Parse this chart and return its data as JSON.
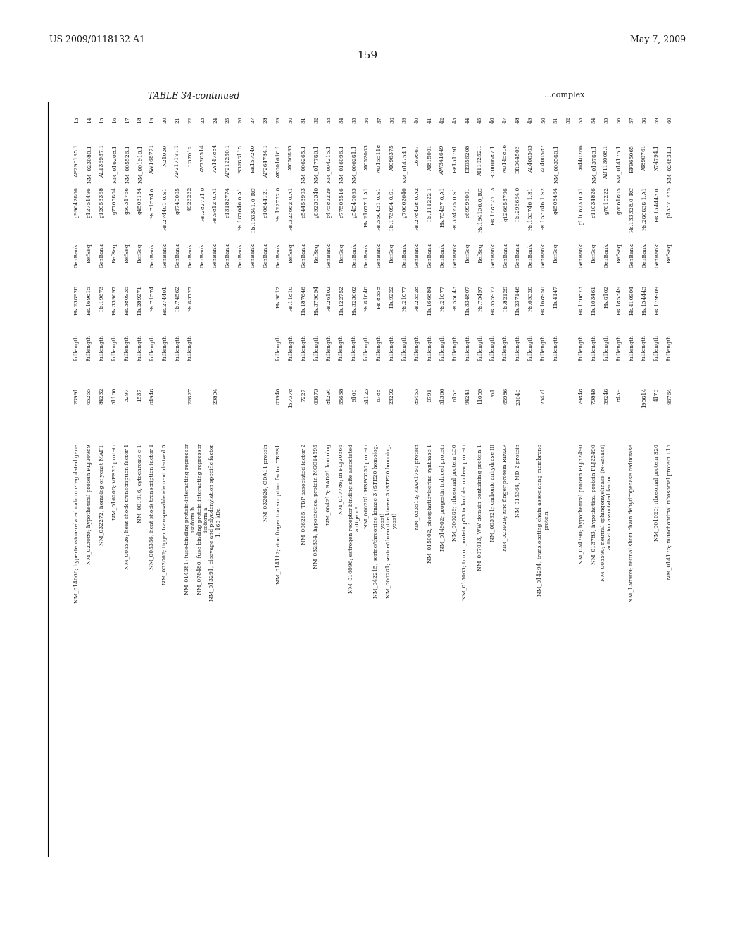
{
  "header_left": "US 2009/0118132 A1",
  "header_right": "May 7, 2009",
  "page_number": "159",
  "table_title": "TABLE 34-continued",
  "table_subtitle": "...complex",
  "background_color": "#ffffff",
  "text_color": "#1a1a1a",
  "columns": [
    "",
    "",
    "",
    "",
    "",
    "",
    ""
  ],
  "rows": [
    [
      "13",
      "AF290195.1",
      "g99642866",
      "GenBank",
      "Hs.238928",
      "fulllength",
      "28991",
      "NM_014066; hypertension-related calcium-regulated gene"
    ],
    [
      "14",
      "NM_023080.1",
      "g12751496",
      "RefSeq",
      "Hs.169615",
      "fulllength",
      "65265",
      "NM_023080; hypothetical protein FLJ20989"
    ],
    [
      "15",
      "AL136937.1",
      "g12053368",
      "GenBank",
      "Hs.19673",
      "fulllength",
      "84232",
      "NM_032272; homolog of yeast MAF1"
    ],
    [
      "16",
      "NM_016208.1",
      "g7705884",
      "RefSeq",
      "Hs.339697",
      "fulllength",
      "51160",
      "NM_016208; VPS28 protein"
    ],
    [
      "17",
      "NM_005526.1",
      "g5031766",
      "RefSeq",
      "Hs.380935",
      "fulllength",
      "3297",
      "NM_005526; heat shock transcription factor 1"
    ],
    [
      "18",
      "NM_001916.1",
      "g4503184",
      "RefSeq",
      "Hs.289271",
      "fulllength",
      "1537",
      "NM_001916; cytochrome c-1"
    ],
    [
      "19",
      "AW168771",
      "Hs.71574.0",
      "GenBank",
      "Hs.71574",
      "fulllength",
      "84948",
      "NM_005356; heat shock transcription factor 1"
    ],
    [
      "20",
      "N21030",
      "Hs.274401.0.S1",
      "GenBank",
      "Hs.274401",
      "fulllength",
      "",
      "NM_032862; tigger transposable element derived 5"
    ],
    [
      "21",
      "AF217197.1",
      "g6740005",
      "GenBank",
      "Hs.74562",
      "fulllength",
      "",
      ""
    ],
    [
      "22",
      "U37012",
      "4923232",
      "GenBank",
      "Hs.83727",
      "fulllength",
      "22827",
      "NM_014281; fuse-binding protein-interacting repressor isoform b"
    ],
    [
      "23",
      "AV720514",
      "Hs.282721.0",
      "GenBank",
      "",
      "",
      "",
      "NM_078480; fuse-binding protein-interacting repressor isoform a"
    ],
    [
      "24",
      "AA147884",
      "Hs.9812.0.A1",
      "GenBank",
      "",
      "",
      "29894",
      "NM_013291; cleavage and polyadenylation specific factor 1, 160 kDa"
    ],
    [
      "25",
      "AF212250.1",
      "g13182774",
      "GenBank",
      "",
      "",
      "",
      ""
    ],
    [
      "26",
      "BG288115",
      "Hs.187646.0.A1",
      "GenBank",
      "",
      "",
      "",
      ""
    ],
    [
      "27",
      "BE157240",
      "Hs.193341.0_RC",
      "GenBank",
      "",
      "",
      "",
      ""
    ],
    [
      "28",
      "AF264784.1",
      "g10644121",
      "GenBank",
      "",
      "",
      "",
      "NM_032026; CDA11 protein"
    ],
    [
      "29",
      "AK001618.1",
      "Hs.122752.0",
      "GenBank",
      "Hs.9812",
      "fulllength",
      "83940",
      "NM_014112; zinc finger transcription factor TRPS1"
    ],
    [
      "30",
      "AI056895",
      "Hs.323662.0.A1",
      "RefSeq",
      "Hs.11810",
      "fulllength",
      "157378",
      ""
    ],
    [
      "31",
      "NM_006265.1",
      "g54453993",
      "GenBank",
      "Hs.187646",
      "fulllength",
      "7227",
      "NM_006265; TBP-associated factor 2"
    ],
    [
      "32",
      "NM_017786.1",
      "g89233340",
      "RefSeq",
      "Hs.379094",
      "fulllength",
      "66873",
      "NM_032334; hypothetical protein MGC14595"
    ],
    [
      "33",
      "NM_004215.1",
      "g47582229",
      "GenBank",
      "Hs.26102",
      "fulllength",
      "84294",
      "NM_004215; RAD21 homolog"
    ],
    [
      "34",
      "NM_016096.1",
      "g77505516",
      "RefSeq",
      "Hs.122752",
      "fulllength",
      "55638",
      "NM_017786; in FLJ20366"
    ],
    [
      "35",
      "NM_006281.1",
      "g54540093",
      "GenBank",
      "Hs.323662",
      "fulllength",
      "9166",
      "NM_016096; estrogen receptor binding site associated antigen 9"
    ],
    [
      "36",
      "AI052003",
      "Hs.21077.1.A1",
      "GenBank",
      "Hs.81848",
      "fulllength",
      "51123",
      "NM_006281; HSPC038 protein"
    ],
    [
      "37",
      "AU155118",
      "Hs.550431.0.S1",
      "GenBank",
      "Hs.8358",
      "fulllength",
      "6788",
      "NM_042215; serine/threonine kinase 3 (STE20 homolog, yeast)"
    ],
    [
      "38",
      "AI096375",
      "Hs.173094.0.S1",
      "RefSeq",
      "Hs.9222",
      "fulllength",
      "23292",
      "NM_006281; serine/threonine kinase 3 (STE20 homolog, yeast)"
    ],
    [
      "39",
      "NM_014754.1",
      "g76662646",
      "GenBank",
      "Hs.21077",
      "fulllength",
      "",
      ""
    ],
    [
      "40",
      "U69567",
      "Hs.278428.0.A2",
      "GenBank",
      "Hs.23528",
      "fulllength",
      "85453",
      "NM_033512; KIAA1750 protein"
    ],
    [
      "41",
      "AI815001",
      "Hs.111222.1",
      "GenBank",
      "Hs.166684",
      "fulllength",
      "9791",
      "NM_015002; phosphatidylserine synthase 1"
    ],
    [
      "42",
      "AW341649",
      "Hs.75497.0.A1",
      "GenBank",
      "Hs.21077",
      "fulllength",
      "51366",
      "NM_014902; progestin induced protein"
    ],
    [
      "43",
      "BF131791",
      "Hs.324275.0.S1",
      "GenBank",
      "Hs.55043",
      "fulllength",
      "6156",
      "NM_000289; ribosomal protein L30"
    ],
    [
      "44",
      "BE056208",
      "g69996001",
      "RefSeq",
      "Hs.334807",
      "fulllength",
      "94241",
      "NM_015003; tumor protein p53 inducible nuclear protein 1"
    ],
    [
      "45",
      "AI110252.1",
      "Hs.194136.0_RC",
      "RefSeq",
      "Hs.75497",
      "fulllength",
      "11059",
      "NM_007013; WW domain-containing protein 1"
    ],
    [
      "46",
      "BC000687.1",
      "Hs.168625.03",
      "GenBank",
      "Hs.355977",
      "fulllength",
      "761",
      "NM_003921; carbonic anhydrase III"
    ],
    [
      "47",
      "AU145806",
      "g126653796",
      "GenBank",
      "Hs.82129",
      "fulllength",
      "65986",
      "NM_023929; zinc finger protein RINZF"
    ],
    [
      "48",
      "BR044503",
      "Hs.296664.0",
      "GenBank",
      "Hs.237146",
      "fulllength",
      "23643",
      "NM_015364; MD-2 protein"
    ],
    [
      "49",
      "AL400503",
      "Hs.153746.1.S1",
      "GenBank",
      "Hs.69328",
      "fulllength",
      "",
      ""
    ],
    [
      "50",
      "AL400587",
      "Hs.153746.1.S2",
      "GenBank",
      "Hs.168950",
      "fulllength",
      "23471",
      "NM_014294; translocating chain-associating membrane protein"
    ],
    [
      "51",
      "NM_003580.1",
      "g4508464",
      "RefSeq",
      "Hs.4147",
      "fulllength",
      "",
      ""
    ],
    [
      "52",
      "",
      "",
      "",
      "",
      "",
      "",
      ""
    ],
    [
      "53",
      "AI440266",
      "g110673.0.A1",
      "GenBank",
      "Hs.170873",
      "fulllength",
      "79848",
      "NM_034790; hypothetical protein FLJ32490"
    ],
    [
      "54",
      "NM_013783.1",
      "g11034826",
      "RefSeq",
      "Hs.103461",
      "fulllength",
      "79848",
      "NM_013783; hypothetical protein FLJ22490"
    ],
    [
      "55",
      "AU113008.1",
      "g7810222",
      "GenBank",
      "Hs.8102",
      "fulllength",
      "59248",
      "NM_003590; neutral sphingomyelinase (N-SMase) activation associated factor"
    ],
    [
      "56",
      "NM_014175.1",
      "g7661805",
      "RefSeq",
      "Hs.185349",
      "fulllength",
      "8439",
      ""
    ],
    [
      "57",
      "BF965065",
      "Hs.133328.0_RC",
      "GenBank",
      "Hs.410904",
      "fulllength",
      "",
      "NM_138969; retinal short chain dehydrogenase reductase"
    ],
    [
      "58",
      "AI890761",
      "Hs.280838.1.A1",
      "GenBank",
      "Hs.154443",
      "fulllength",
      "195814",
      ""
    ],
    [
      "59",
      "X74794.1",
      "Hs.134443.0",
      "GenBank",
      "Hs.179909",
      "fulllength",
      "4173",
      "NM_001023; ribosomal protein S20"
    ],
    [
      "60",
      "NM_024831.1",
      "p13370235",
      "RefSeq",
      "",
      "fulllength",
      "96764",
      "NM_014175; mitochondrial ribosomal protein L15"
    ]
  ]
}
